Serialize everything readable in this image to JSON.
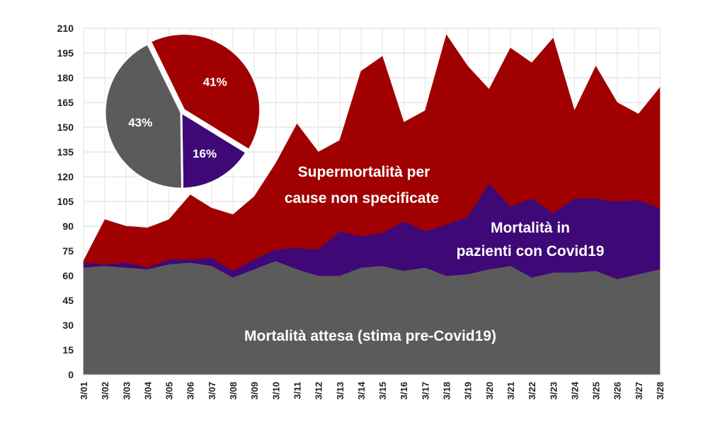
{
  "chart_data": [
    {
      "type": "area",
      "stacked": true,
      "categories": [
        "3/01",
        "3/02",
        "3/03",
        "3/04",
        "3/05",
        "3/06",
        "3/07",
        "3/08",
        "3/09",
        "3/10",
        "3/11",
        "3/12",
        "3/13",
        "3/14",
        "3/15",
        "3/16",
        "3/17",
        "3/18",
        "3/19",
        "3/20",
        "3/21",
        "3/22",
        "3/23",
        "3/24",
        "3/25",
        "3/26",
        "3/27",
        "3/28"
      ],
      "ylim": [
        0,
        210
      ],
      "yticks": [
        "0",
        "15",
        "30",
        "45",
        "60",
        "75",
        "90",
        "105",
        "120",
        "135",
        "150",
        "165",
        "180",
        "195",
        "210"
      ],
      "grid": true,
      "series": [
        {
          "name": "Mortalità attesa (stima pre-Covid19)",
          "color": "#5b5b5b",
          "values": [
            65,
            66,
            65,
            64,
            67,
            68,
            66,
            59,
            64,
            69,
            64,
            60,
            60,
            65,
            66,
            63,
            65,
            60,
            61,
            64,
            66,
            59,
            62,
            62,
            63,
            58,
            61,
            64
          ]
        },
        {
          "name": "Mortalità in pazienti con Covid19",
          "color": "#3f0877",
          "values": [
            3,
            1,
            3,
            1,
            3,
            2,
            5,
            4,
            6,
            7,
            13,
            16,
            27,
            19,
            20,
            30,
            22,
            31,
            35,
            52,
            36,
            48,
            36,
            45,
            44,
            47,
            45,
            37
          ]
        },
        {
          "name": "Supermortalità per cause non specificate",
          "color": "#a00000",
          "values": [
            1,
            27,
            22,
            24,
            24,
            39,
            30,
            34,
            38,
            52,
            75,
            59,
            55,
            100,
            107,
            60,
            73,
            115,
            91,
            57,
            96,
            82,
            106,
            53,
            80,
            60,
            52,
            73
          ]
        }
      ]
    },
    {
      "type": "pie",
      "slices": [
        {
          "label": "41%",
          "value": 41,
          "color": "#a00000"
        },
        {
          "label": "16%",
          "value": 16,
          "color": "#3f0877"
        },
        {
          "label": "43%",
          "value": 43,
          "color": "#5b5b5b"
        }
      ]
    }
  ],
  "labels": {
    "super_line1": "Supermortalità per",
    "super_line2": "cause non specificate",
    "covid_line1": "Mortalità in",
    "covid_line2": "pazienti con Covid19",
    "attesa": "Mortalità attesa (stima pre-Covid19)"
  }
}
